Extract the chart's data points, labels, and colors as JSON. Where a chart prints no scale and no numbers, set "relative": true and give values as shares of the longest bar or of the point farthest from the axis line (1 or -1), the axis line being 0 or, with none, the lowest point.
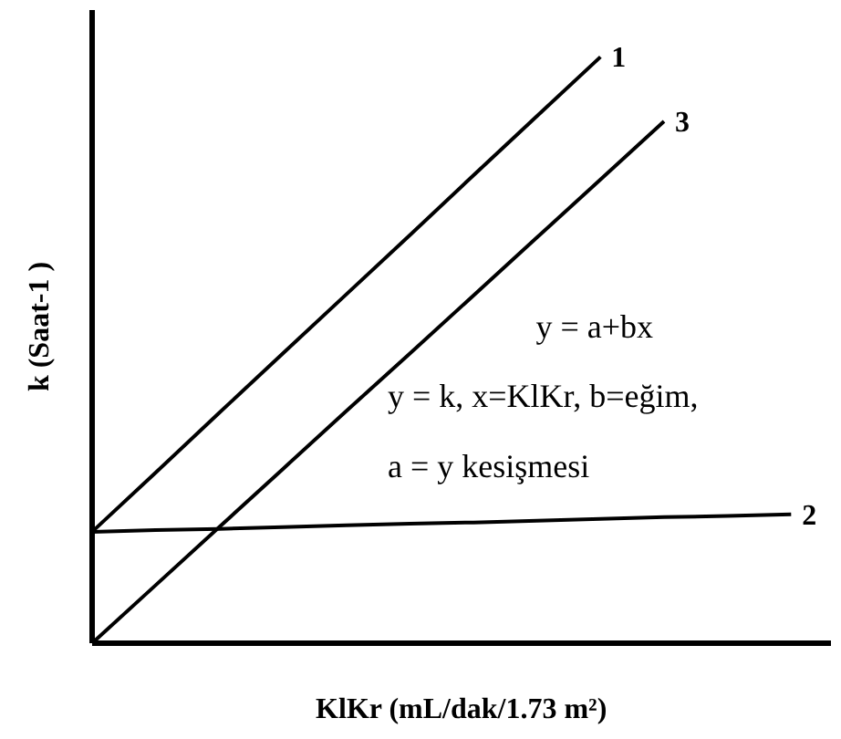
{
  "chart_data": {
    "type": "line",
    "relative": true,
    "xlabel": "KlKr (mL/dak/1.73 m²)",
    "ylabel": "k (Saat-1 )",
    "annotations": [
      "y = a+bx",
      "y = k, x=KlKr, b=eğim,",
      "a = y kesişmesi"
    ],
    "categories": [
      null,
      null,
      null,
      null,
      null,
      null,
      null,
      null,
      null,
      null,
      null,
      null
    ],
    "series": [
      {
        "name": "1",
        "color": "#000000",
        "values": [
          0.19,
          0.291,
          0.393,
          0.494,
          0.595,
          0.696,
          0.798,
          0.899,
          1.0,
          null,
          null,
          null
        ]
      },
      {
        "name": "2",
        "color": "#000000",
        "values": [
          0.19,
          0.193,
          0.195,
          0.198,
          0.201,
          0.204,
          0.206,
          0.209,
          0.212,
          0.215,
          0.217,
          0.22
        ]
      },
      {
        "name": "3",
        "color": "#000000",
        "values": [
          0,
          0.099,
          0.198,
          0.297,
          0.396,
          0.494,
          0.593,
          0.692,
          0.791,
          0.89,
          null,
          null
        ]
      }
    ],
    "line_style": "solid"
  }
}
